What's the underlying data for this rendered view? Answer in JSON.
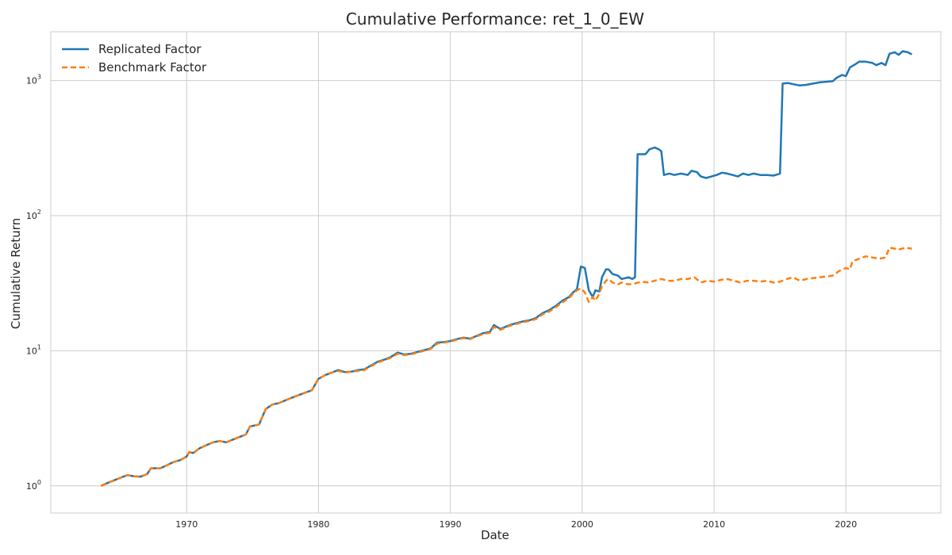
{
  "chart_data": {
    "type": "line",
    "title": "Cumulative Performance: ret_1_0_EW",
    "xlabel": "Date",
    "ylabel": "Cumulative Return",
    "yscale": "log",
    "xlim": [
      1959.7,
      2027.2
    ],
    "ylim": [
      0.63,
      2300
    ],
    "grid": true,
    "legend_position": "top-left",
    "x_ticks": [
      1970,
      1980,
      1990,
      2000,
      2010,
      2020
    ],
    "x_tick_labels": [
      "1970",
      "1980",
      "1990",
      "2000",
      "2010",
      "2020"
    ],
    "y_ticks": [
      1,
      10,
      100,
      1000
    ],
    "y_tick_labels": [
      {
        "base": "10",
        "exp": "0"
      },
      {
        "base": "10",
        "exp": "1"
      },
      {
        "base": "10",
        "exp": "2"
      },
      {
        "base": "10",
        "exp": "3"
      }
    ],
    "series": [
      {
        "name": "Replicated Factor",
        "color": "#1f77b4",
        "style": "solid",
        "points": [
          [
            1963.5,
            1.0
          ],
          [
            1964.0,
            1.05
          ],
          [
            1964.5,
            1.1
          ],
          [
            1965.0,
            1.15
          ],
          [
            1965.5,
            1.2
          ],
          [
            1966.0,
            1.18
          ],
          [
            1966.5,
            1.17
          ],
          [
            1967.0,
            1.22
          ],
          [
            1967.3,
            1.35
          ],
          [
            1968.0,
            1.35
          ],
          [
            1968.5,
            1.42
          ],
          [
            1969.0,
            1.5
          ],
          [
            1969.5,
            1.55
          ],
          [
            1970.0,
            1.65
          ],
          [
            1970.2,
            1.78
          ],
          [
            1970.5,
            1.75
          ],
          [
            1971.0,
            1.9
          ],
          [
            1971.5,
            2.0
          ],
          [
            1972.0,
            2.1
          ],
          [
            1972.5,
            2.15
          ],
          [
            1973.0,
            2.1
          ],
          [
            1973.5,
            2.2
          ],
          [
            1974.0,
            2.3
          ],
          [
            1974.5,
            2.4
          ],
          [
            1974.8,
            2.75
          ],
          [
            1975.5,
            2.85
          ],
          [
            1976.0,
            3.7
          ],
          [
            1976.5,
            4.0
          ],
          [
            1977.0,
            4.1
          ],
          [
            1977.5,
            4.3
          ],
          [
            1978.0,
            4.5
          ],
          [
            1978.5,
            4.7
          ],
          [
            1979.0,
            4.9
          ],
          [
            1979.5,
            5.1
          ],
          [
            1980.0,
            6.2
          ],
          [
            1980.5,
            6.6
          ],
          [
            1981.0,
            6.9
          ],
          [
            1981.5,
            7.2
          ],
          [
            1982.0,
            6.95
          ],
          [
            1982.5,
            7.0
          ],
          [
            1983.0,
            7.2
          ],
          [
            1983.5,
            7.3
          ],
          [
            1984.0,
            7.8
          ],
          [
            1984.5,
            8.3
          ],
          [
            1985.0,
            8.6
          ],
          [
            1985.5,
            9.0
          ],
          [
            1986.0,
            9.7
          ],
          [
            1986.5,
            9.4
          ],
          [
            1987.0,
            9.5
          ],
          [
            1987.5,
            9.8
          ],
          [
            1988.0,
            10.1
          ],
          [
            1988.5,
            10.4
          ],
          [
            1989.0,
            11.5
          ],
          [
            1989.5,
            11.6
          ],
          [
            1990.0,
            11.8
          ],
          [
            1990.5,
            12.2
          ],
          [
            1991.0,
            12.5
          ],
          [
            1991.5,
            12.3
          ],
          [
            1992.0,
            12.9
          ],
          [
            1992.5,
            13.5
          ],
          [
            1993.0,
            13.8
          ],
          [
            1993.3,
            15.5
          ],
          [
            1993.8,
            14.5
          ],
          [
            1994.5,
            15.5
          ],
          [
            1995.0,
            16.0
          ],
          [
            1995.5,
            16.5
          ],
          [
            1996.0,
            16.8
          ],
          [
            1996.5,
            17.5
          ],
          [
            1997.0,
            19.0
          ],
          [
            1997.5,
            20.0
          ],
          [
            1998.0,
            21.5
          ],
          [
            1998.5,
            23.5
          ],
          [
            1999.0,
            25.0
          ],
          [
            1999.3,
            27.0
          ],
          [
            1999.6,
            28.5
          ],
          [
            1999.9,
            42.0
          ],
          [
            2000.2,
            41.0
          ],
          [
            2000.5,
            28.0
          ],
          [
            2000.8,
            25.0
          ],
          [
            2001.0,
            28.0
          ],
          [
            2001.3,
            27.5
          ],
          [
            2001.5,
            35.0
          ],
          [
            2001.8,
            40.0
          ],
          [
            2002.0,
            40.0
          ],
          [
            2002.3,
            37.0
          ],
          [
            2002.7,
            36.0
          ],
          [
            2003.0,
            34.0
          ],
          [
            2003.5,
            35.0
          ],
          [
            2003.8,
            34.0
          ],
          [
            2004.0,
            35.0
          ],
          [
            2004.2,
            285.0
          ],
          [
            2004.8,
            285.0
          ],
          [
            2005.1,
            310.0
          ],
          [
            2005.5,
            320.0
          ],
          [
            2005.8,
            310.0
          ],
          [
            2006.0,
            300.0
          ],
          [
            2006.2,
            200.0
          ],
          [
            2006.6,
            205.0
          ],
          [
            2007.0,
            200.0
          ],
          [
            2007.5,
            205.0
          ],
          [
            2008.0,
            200.0
          ],
          [
            2008.3,
            215.0
          ],
          [
            2008.7,
            210.0
          ],
          [
            2009.0,
            195.0
          ],
          [
            2009.4,
            190.0
          ],
          [
            2009.8,
            195.0
          ],
          [
            2010.2,
            200.0
          ],
          [
            2010.6,
            208.0
          ],
          [
            2011.0,
            205.0
          ],
          [
            2011.4,
            200.0
          ],
          [
            2011.8,
            195.0
          ],
          [
            2012.2,
            205.0
          ],
          [
            2012.6,
            200.0
          ],
          [
            2013.0,
            205.0
          ],
          [
            2013.5,
            200.0
          ],
          [
            2014.0,
            200.0
          ],
          [
            2014.5,
            198.0
          ],
          [
            2015.0,
            205.0
          ],
          [
            2015.2,
            950.0
          ],
          [
            2015.6,
            960.0
          ],
          [
            2016.0,
            940.0
          ],
          [
            2016.5,
            920.0
          ],
          [
            2017.0,
            930.0
          ],
          [
            2017.5,
            950.0
          ],
          [
            2018.0,
            970.0
          ],
          [
            2018.5,
            980.0
          ],
          [
            2019.0,
            990.0
          ],
          [
            2019.3,
            1050.0
          ],
          [
            2019.7,
            1100.0
          ],
          [
            2020.0,
            1080.0
          ],
          [
            2020.3,
            1250.0
          ],
          [
            2020.7,
            1320.0
          ],
          [
            2021.0,
            1380.0
          ],
          [
            2021.5,
            1380.0
          ],
          [
            2022.0,
            1350.0
          ],
          [
            2022.3,
            1300.0
          ],
          [
            2022.7,
            1350.0
          ],
          [
            2023.0,
            1300.0
          ],
          [
            2023.3,
            1580.0
          ],
          [
            2023.7,
            1620.0
          ],
          [
            2024.0,
            1550.0
          ],
          [
            2024.3,
            1650.0
          ],
          [
            2024.7,
            1620.0
          ],
          [
            2025.0,
            1560.0
          ]
        ]
      },
      {
        "name": "Benchmark Factor",
        "color": "#ff7f0e",
        "style": "dashed",
        "points": [
          [
            1963.5,
            1.0
          ],
          [
            1964.0,
            1.05
          ],
          [
            1964.5,
            1.1
          ],
          [
            1965.0,
            1.15
          ],
          [
            1965.5,
            1.2
          ],
          [
            1966.0,
            1.18
          ],
          [
            1966.5,
            1.17
          ],
          [
            1967.0,
            1.22
          ],
          [
            1967.3,
            1.35
          ],
          [
            1968.0,
            1.35
          ],
          [
            1968.5,
            1.42
          ],
          [
            1969.0,
            1.5
          ],
          [
            1969.5,
            1.55
          ],
          [
            1970.0,
            1.65
          ],
          [
            1970.2,
            1.78
          ],
          [
            1970.5,
            1.75
          ],
          [
            1971.0,
            1.9
          ],
          [
            1971.5,
            2.0
          ],
          [
            1972.0,
            2.1
          ],
          [
            1972.5,
            2.15
          ],
          [
            1973.0,
            2.1
          ],
          [
            1973.5,
            2.2
          ],
          [
            1974.0,
            2.3
          ],
          [
            1974.5,
            2.4
          ],
          [
            1974.8,
            2.75
          ],
          [
            1975.5,
            2.85
          ],
          [
            1976.0,
            3.7
          ],
          [
            1976.5,
            4.0
          ],
          [
            1977.0,
            4.1
          ],
          [
            1977.5,
            4.3
          ],
          [
            1978.0,
            4.5
          ],
          [
            1978.5,
            4.7
          ],
          [
            1979.0,
            4.9
          ],
          [
            1979.5,
            5.1
          ],
          [
            1980.0,
            6.2
          ],
          [
            1980.5,
            6.6
          ],
          [
            1981.0,
            6.9
          ],
          [
            1981.5,
            7.1
          ],
          [
            1982.0,
            6.9
          ],
          [
            1982.5,
            7.0
          ],
          [
            1983.0,
            7.1
          ],
          [
            1983.5,
            7.2
          ],
          [
            1984.0,
            7.7
          ],
          [
            1984.5,
            8.2
          ],
          [
            1985.0,
            8.5
          ],
          [
            1985.5,
            8.9
          ],
          [
            1986.0,
            9.5
          ],
          [
            1986.5,
            9.3
          ],
          [
            1987.0,
            9.4
          ],
          [
            1987.5,
            9.7
          ],
          [
            1988.0,
            10.0
          ],
          [
            1988.5,
            10.3
          ],
          [
            1989.0,
            11.3
          ],
          [
            1989.5,
            11.5
          ],
          [
            1990.0,
            11.7
          ],
          [
            1990.5,
            12.1
          ],
          [
            1991.0,
            12.4
          ],
          [
            1991.5,
            12.2
          ],
          [
            1992.0,
            12.8
          ],
          [
            1992.5,
            13.3
          ],
          [
            1993.0,
            13.6
          ],
          [
            1993.3,
            15.0
          ],
          [
            1993.8,
            14.3
          ],
          [
            1994.5,
            15.3
          ],
          [
            1995.0,
            15.8
          ],
          [
            1995.5,
            16.3
          ],
          [
            1996.0,
            16.6
          ],
          [
            1996.5,
            17.2
          ],
          [
            1997.0,
            18.6
          ],
          [
            1997.5,
            19.5
          ],
          [
            1998.0,
            21.0
          ],
          [
            1998.5,
            22.8
          ],
          [
            1999.0,
            24.5
          ],
          [
            1999.3,
            26.5
          ],
          [
            1999.6,
            28.0
          ],
          [
            1999.9,
            29.0
          ],
          [
            2000.2,
            27.0
          ],
          [
            2000.5,
            23.0
          ],
          [
            2000.8,
            25.0
          ],
          [
            2001.0,
            23.5
          ],
          [
            2001.3,
            26.5
          ],
          [
            2001.5,
            30.0
          ],
          [
            2001.8,
            33.0
          ],
          [
            2002.0,
            34.0
          ],
          [
            2002.3,
            32.0
          ],
          [
            2002.7,
            31.0
          ],
          [
            2003.0,
            32.0
          ],
          [
            2003.5,
            31.0
          ],
          [
            2004.0,
            31.5
          ],
          [
            2004.5,
            32.5
          ],
          [
            2005.0,
            32.0
          ],
          [
            2005.5,
            33.0
          ],
          [
            2006.0,
            34.0
          ],
          [
            2006.5,
            33.0
          ],
          [
            2007.0,
            33.0
          ],
          [
            2007.5,
            34.0
          ],
          [
            2008.0,
            34.0
          ],
          [
            2008.5,
            35.0
          ],
          [
            2009.0,
            32.0
          ],
          [
            2009.5,
            33.0
          ],
          [
            2010.0,
            32.5
          ],
          [
            2010.5,
            33.5
          ],
          [
            2011.0,
            34.0
          ],
          [
            2011.5,
            33.0
          ],
          [
            2012.0,
            32.0
          ],
          [
            2012.5,
            33.0
          ],
          [
            2013.0,
            33.0
          ],
          [
            2013.5,
            32.5
          ],
          [
            2014.0,
            33.0
          ],
          [
            2014.5,
            32.0
          ],
          [
            2015.0,
            32.5
          ],
          [
            2015.5,
            34.0
          ],
          [
            2016.0,
            35.0
          ],
          [
            2016.5,
            33.0
          ],
          [
            2017.0,
            34.0
          ],
          [
            2017.5,
            34.5
          ],
          [
            2018.0,
            35.0
          ],
          [
            2018.5,
            35.5
          ],
          [
            2019.0,
            36.0
          ],
          [
            2019.5,
            39.0
          ],
          [
            2020.0,
            41.0
          ],
          [
            2020.3,
            40.0
          ],
          [
            2020.5,
            46.0
          ],
          [
            2021.0,
            48.0
          ],
          [
            2021.5,
            50.0
          ],
          [
            2022.0,
            49.0
          ],
          [
            2022.5,
            48.0
          ],
          [
            2023.0,
            49.0
          ],
          [
            2023.3,
            58.0
          ],
          [
            2023.7,
            57.0
          ],
          [
            2024.0,
            56.0
          ],
          [
            2024.5,
            58.0
          ],
          [
            2025.0,
            57.0
          ]
        ]
      }
    ]
  }
}
